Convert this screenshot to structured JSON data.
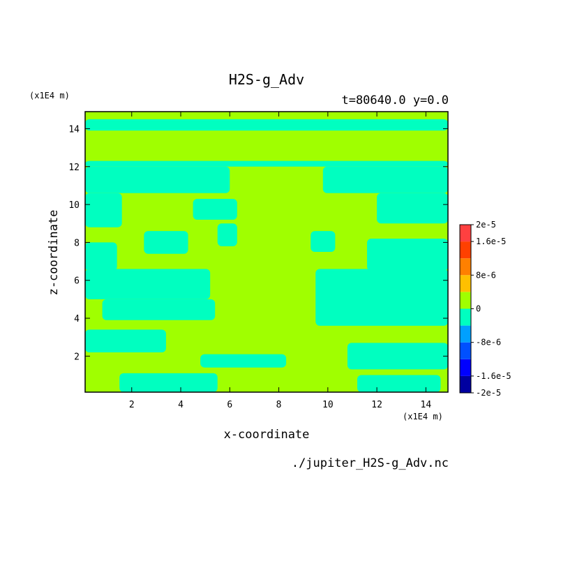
{
  "chart_data": {
    "type": "heatmap",
    "title": "H2S-g_Adv",
    "subtitle": "t=80640.0 y=0.0",
    "xlabel": "x-coordinate",
    "ylabel": "z-coordinate",
    "x_unit": "(x1E4 m)",
    "z_unit": "(x1E4 m)",
    "source": "./jupiter_H2S-g_Adv.nc",
    "xlim": [
      0.1,
      14.9
    ],
    "ylim": [
      0.1,
      14.9
    ],
    "x_ticks": [
      2,
      4,
      6,
      8,
      10,
      12,
      14
    ],
    "y_ticks": [
      2,
      4,
      6,
      8,
      10,
      12,
      14
    ],
    "colorbar": {
      "levels": [
        -2e-05,
        -1.6e-05,
        -1.2e-05,
        -8e-06,
        -4e-06,
        0,
        4e-06,
        8e-06,
        1.2e-05,
        1.6e-05,
        2e-05
      ],
      "labels": [
        "2e-5",
        "1.6e-5",
        "8e-6",
        "0",
        "-8e-6",
        "-1.6e-5",
        "-2e-5"
      ],
      "label_values": [
        2e-05,
        1.6e-05,
        8e-06,
        0,
        -8e-06,
        -1.6e-05,
        -2e-05
      ],
      "colors": [
        "#0000a0",
        "#0000ff",
        "#0050ff",
        "#00a0ff",
        "#00ffc0",
        "#a0ff00",
        "#ffc000",
        "#ff8000",
        "#ff4000",
        "#ff4040"
      ]
    },
    "field": {
      "background_class": "0 to 4e-6",
      "background_color": "#a0ff00",
      "patch_class": "-4e-6 to 0",
      "patch_color": "#00ffc0",
      "patches": [
        {
          "x": [
            0.1,
            14.9
          ],
          "z": [
            13.9,
            14.5
          ]
        },
        {
          "x": [
            0.1,
            14.9
          ],
          "z": [
            12.0,
            12.3
          ]
        },
        {
          "x": [
            0.1,
            6.0
          ],
          "z": [
            10.6,
            12.0
          ]
        },
        {
          "x": [
            9.8,
            14.9
          ],
          "z": [
            10.6,
            12.0
          ]
        },
        {
          "x": [
            0.1,
            1.6
          ],
          "z": [
            8.8,
            10.6
          ]
        },
        {
          "x": [
            4.5,
            6.3
          ],
          "z": [
            9.2,
            10.3
          ]
        },
        {
          "x": [
            12.0,
            14.9
          ],
          "z": [
            9.0,
            10.6
          ]
        },
        {
          "x": [
            0.1,
            1.4
          ],
          "z": [
            6.5,
            8.0
          ]
        },
        {
          "x": [
            2.5,
            4.3
          ],
          "z": [
            7.4,
            8.6
          ]
        },
        {
          "x": [
            5.5,
            6.3
          ],
          "z": [
            7.8,
            9.0
          ]
        },
        {
          "x": [
            9.3,
            10.3
          ],
          "z": [
            7.5,
            8.6
          ]
        },
        {
          "x": [
            11.6,
            14.9
          ],
          "z": [
            6.5,
            8.2
          ]
        },
        {
          "x": [
            0.1,
            5.2
          ],
          "z": [
            5.0,
            6.6
          ]
        },
        {
          "x": [
            0.8,
            5.4
          ],
          "z": [
            3.9,
            5.0
          ]
        },
        {
          "x": [
            9.5,
            14.9
          ],
          "z": [
            3.6,
            6.6
          ]
        },
        {
          "x": [
            0.1,
            3.4
          ],
          "z": [
            2.2,
            3.4
          ]
        },
        {
          "x": [
            4.8,
            8.3
          ],
          "z": [
            1.4,
            2.1
          ]
        },
        {
          "x": [
            10.8,
            14.9
          ],
          "z": [
            1.3,
            2.7
          ]
        },
        {
          "x": [
            1.5,
            5.5
          ],
          "z": [
            0.1,
            1.1
          ]
        },
        {
          "x": [
            11.2,
            14.6
          ],
          "z": [
            0.1,
            1.0
          ]
        }
      ]
    }
  }
}
